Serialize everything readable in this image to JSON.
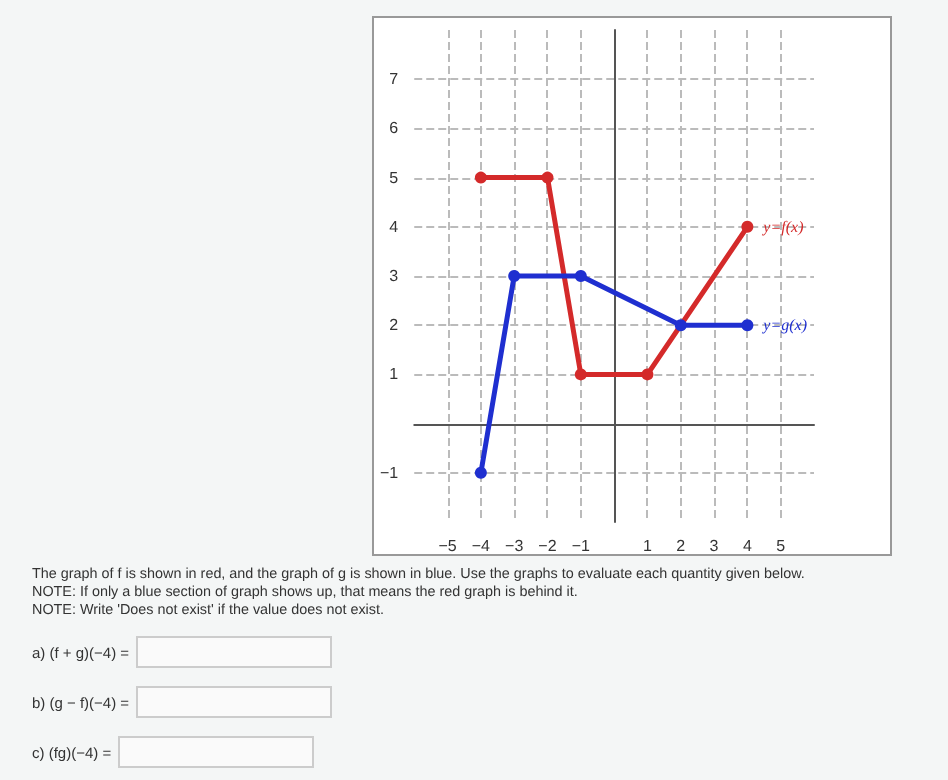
{
  "chart_data": {
    "type": "line",
    "xlim": [
      -6,
      6
    ],
    "ylim": [
      -2,
      8
    ],
    "xticks": [
      -5,
      -4,
      -3,
      -2,
      -1,
      1,
      2,
      3,
      4,
      5
    ],
    "yticks": [
      -1,
      1,
      2,
      3,
      4,
      5,
      6,
      7
    ],
    "grid": true,
    "marker": "circle",
    "line_style": "solid",
    "legend": false,
    "series": [
      {
        "name": "y=f(x)",
        "color": "#d42a2a",
        "x": [
          -4,
          -2,
          -1,
          1,
          4
        ],
        "values": [
          5,
          5,
          1,
          1,
          4
        ]
      },
      {
        "name": "y=g(x)",
        "color": "#1f2fd0",
        "x": [
          -4,
          -3,
          -1,
          2,
          4
        ],
        "values": [
          -1,
          3,
          3,
          2,
          2
        ]
      }
    ],
    "annotations": [
      "The graph of f is shown in red, and the graph of g is shown in blue. Use the graphs to evaluate each quantity given below.",
      "NOTE: If only a blue section of graph shows up, that means the red graph is behind it.",
      "NOTE: Write 'Does not exist' if the value does not exist.",
      "a) (f + g)(−4) =",
      "b) (g − f)(−4) =",
      "c) (fg)(−4) ="
    ]
  }
}
